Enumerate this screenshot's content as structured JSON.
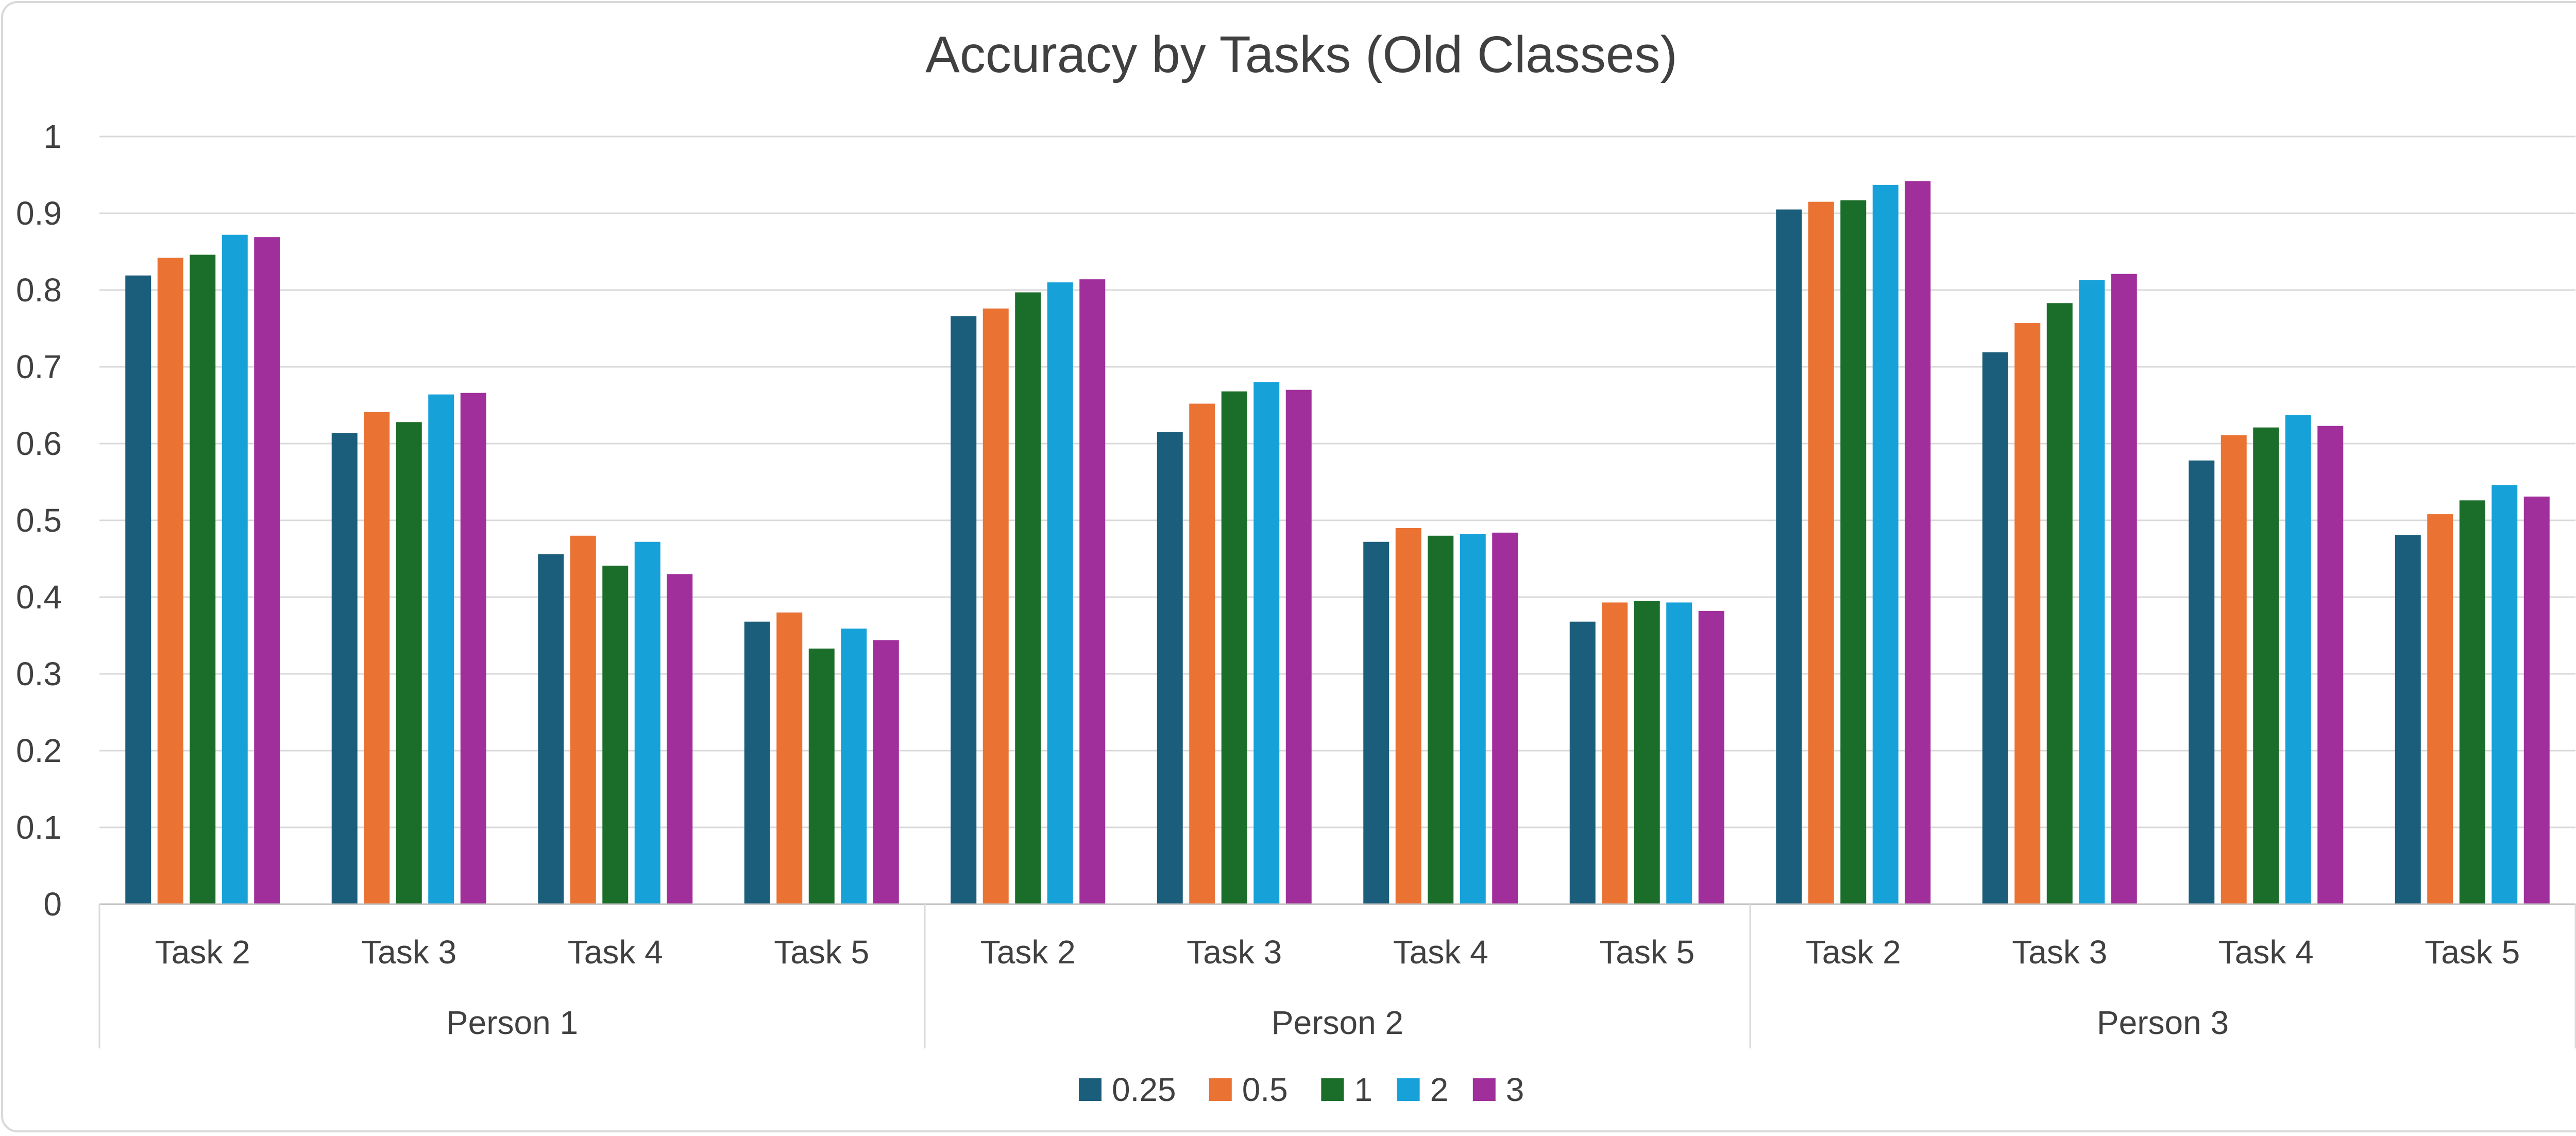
{
  "chart_data": {
    "type": "bar",
    "title": "Accuracy by Tasks (Old Classes)",
    "xlabel": "",
    "ylabel": "",
    "ylim": [
      0,
      1
    ],
    "yticks": [
      "0",
      "0.1",
      "0.2",
      "0.3",
      "0.4",
      "0.5",
      "0.6",
      "0.7",
      "0.8",
      "0.9",
      "1"
    ],
    "grid": true,
    "legend_position": "bottom",
    "groups": [
      {
        "label": "Person 1",
        "categories": [
          "Task 2",
          "Task 3",
          "Task 4",
          "Task 5"
        ]
      },
      {
        "label": "Person 2",
        "categories": [
          "Task 2",
          "Task 3",
          "Task 4",
          "Task 5"
        ]
      },
      {
        "label": "Person 3",
        "categories": [
          "Task 2",
          "Task 3",
          "Task 4",
          "Task 5"
        ]
      }
    ],
    "series": [
      {
        "name": "0.25",
        "color": "#1b5e7b",
        "values": [
          0.819,
          0.614,
          0.456,
          0.368,
          0.766,
          0.615,
          0.472,
          0.368,
          0.905,
          0.719,
          0.578,
          0.481
        ]
      },
      {
        "name": "0.5",
        "color": "#ea7334",
        "values": [
          0.842,
          0.641,
          0.48,
          0.38,
          0.776,
          0.652,
          0.49,
          0.393,
          0.915,
          0.757,
          0.611,
          0.508
        ]
      },
      {
        "name": "1",
        "color": "#1b6e2a",
        "values": [
          0.846,
          0.628,
          0.441,
          0.333,
          0.797,
          0.668,
          0.48,
          0.395,
          0.917,
          0.783,
          0.621,
          0.526
        ]
      },
      {
        "name": "2",
        "color": "#17a1d9",
        "values": [
          0.872,
          0.664,
          0.472,
          0.359,
          0.81,
          0.68,
          0.482,
          0.393,
          0.937,
          0.813,
          0.637,
          0.546
        ]
      },
      {
        "name": "3",
        "color": "#a02f9b",
        "values": [
          0.869,
          0.666,
          0.43,
          0.344,
          0.814,
          0.67,
          0.484,
          0.382,
          0.942,
          0.821,
          0.623,
          0.531
        ]
      }
    ]
  }
}
